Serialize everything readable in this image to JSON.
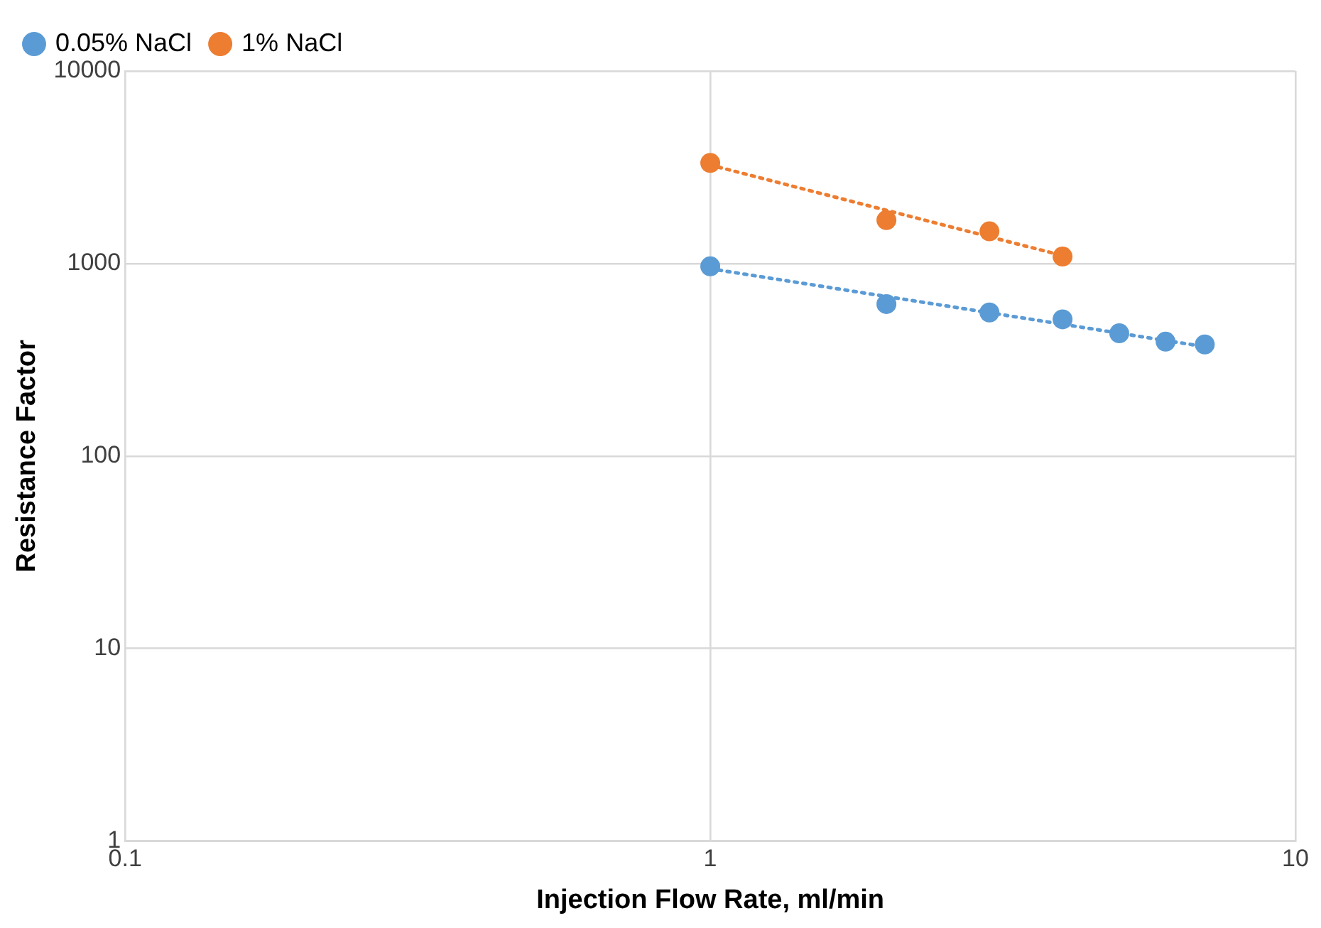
{
  "chart_data": {
    "type": "scatter",
    "xlabel": "Injection Flow Rate, ml/min",
    "ylabel": "Resistance Factor",
    "log": "xy",
    "grid": true,
    "legend": "top left",
    "marker": "circle",
    "xlim": [
      0.1,
      10
    ],
    "xticks": [
      0.1,
      1,
      10
    ],
    "ylim": [
      1,
      10000
    ],
    "yticks": [
      1,
      10,
      100,
      1000,
      10000
    ],
    "series": [
      {
        "name": "0.05% NaCl",
        "color": "#5b9bd5",
        "x": [
          1,
          2,
          3,
          4,
          5,
          6,
          7
        ],
        "values": [
          967,
          616,
          557,
          513,
          434,
          393,
          380
        ]
      },
      {
        "name": "1% NaCl",
        "color": "#ed7d31",
        "x": [
          1,
          2,
          3,
          4
        ],
        "values": [
          3330,
          1680,
          1470,
          1087
        ]
      },
      {
        "type": "line",
        "color": "#5b9bd5",
        "line_style": "dotted",
        "marker": "none",
        "x": [
          1,
          7
        ],
        "values": [
          940,
          370
        ]
      },
      {
        "type": "line",
        "color": "#ed7d31",
        "line_style": "dotted",
        "marker": "none",
        "x": [
          1,
          4
        ],
        "values": [
          3250,
          1100
        ]
      }
    ]
  }
}
